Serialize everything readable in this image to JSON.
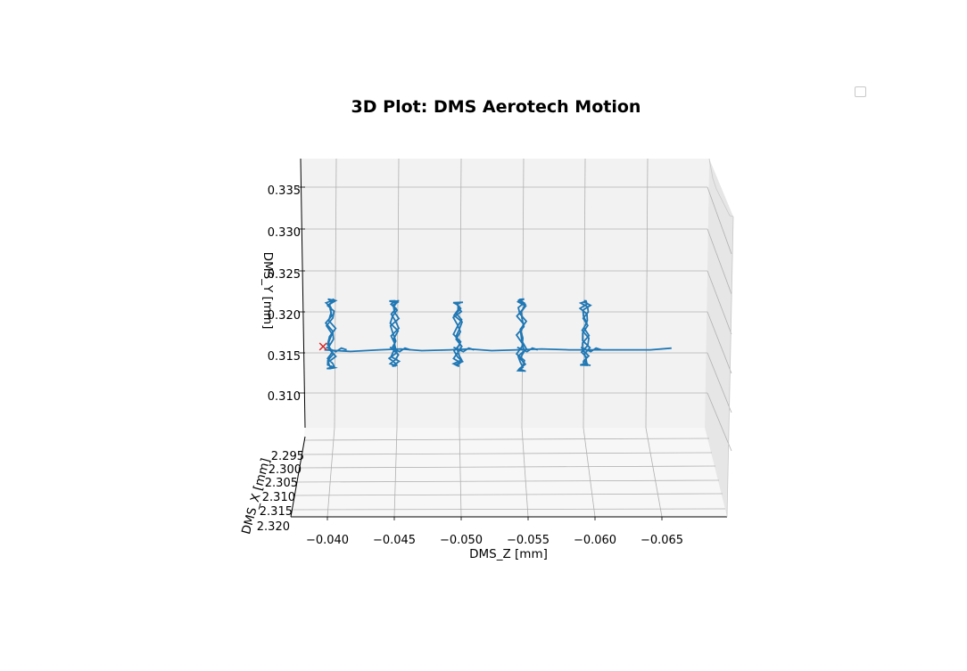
{
  "chart_data": {
    "type": "line",
    "projection": "3d",
    "title": "3D Plot: DMS Aerotech Motion",
    "xlabel": "DMS_Z [mm]",
    "ylabel": "DMS_Y [mm]",
    "zlabel": "DMS_X [mm]",
    "x_ticks": [
      "−0.040",
      "−0.045",
      "−0.050",
      "−0.055",
      "−0.060",
      "−0.065"
    ],
    "y_ticks": [
      "0.310",
      "0.315",
      "0.320",
      "0.325",
      "0.330",
      "0.335"
    ],
    "z_ticks": [
      "2.295",
      "2.300",
      "2.305",
      "2.310",
      "2.315",
      "2.320"
    ],
    "xlim": [
      -0.0375,
      -0.0685
    ],
    "ylim": [
      0.3065,
      0.3385
    ],
    "grid": true,
    "legend": "top-right, empty",
    "series_color": "#1f77b4",
    "marker_color": "#d62728",
    "start_marker": {
      "z_mm": -0.0393,
      "y_mm": 0.3161
    },
    "path_mm": [
      [
        -0.0394,
        0.3157
      ],
      [
        -0.0415,
        0.3155
      ],
      [
        -0.0438,
        0.3157
      ],
      [
        -0.0455,
        0.3158
      ],
      [
        -0.0472,
        0.3156
      ],
      [
        -0.0495,
        0.3157
      ],
      [
        -0.051,
        0.3158
      ],
      [
        -0.0528,
        0.3156
      ],
      [
        -0.0548,
        0.3157
      ],
      [
        -0.0568,
        0.3158
      ],
      [
        -0.059,
        0.3157
      ],
      [
        -0.061,
        0.3157
      ],
      [
        -0.063,
        0.3157
      ],
      [
        -0.0655,
        0.3157
      ],
      [
        -0.0672,
        0.3159
      ]
    ],
    "clusters_mm": [
      {
        "z": -0.0399,
        "y_top": 0.3219,
        "y_bottom": 0.3134
      },
      {
        "z": -0.045,
        "y_top": 0.3217,
        "y_bottom": 0.3137
      },
      {
        "z": -0.0501,
        "y_top": 0.3215,
        "y_bottom": 0.3137
      },
      {
        "z": -0.0552,
        "y_top": 0.3219,
        "y_bottom": 0.3131
      },
      {
        "z": -0.0603,
        "y_top": 0.3217,
        "y_bottom": 0.3138
      }
    ]
  }
}
